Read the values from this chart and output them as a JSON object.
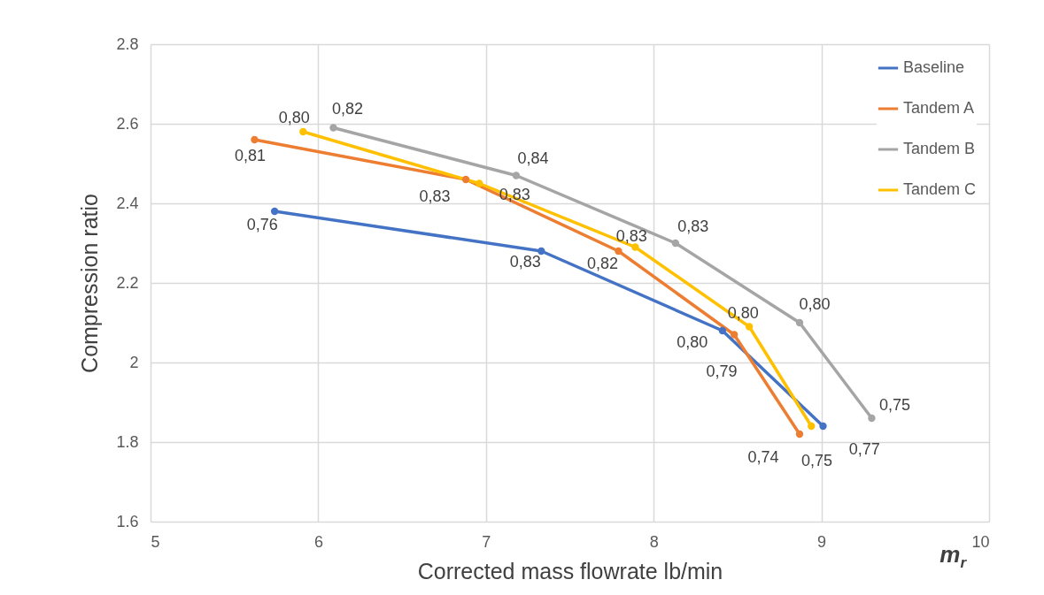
{
  "chart_data": {
    "type": "line",
    "xlabel": "Corrected mass flowrate lb/min",
    "ylabel": "Compression ratio",
    "xlim": [
      5,
      10
    ],
    "xticks": [
      5,
      6,
      7,
      8,
      9,
      10
    ],
    "ylim": [
      1.6,
      2.8
    ],
    "yticks": [
      1.6,
      1.8,
      2,
      2.2,
      2.4,
      2.6,
      2.8
    ],
    "grid": true,
    "legend": "top right",
    "marker": "circle",
    "line_style": "solid",
    "series": [
      {
        "name": "Baseline",
        "color": "#4472c4",
        "x": [
          5.74,
          7.33,
          8.41,
          9.01
        ],
        "values": [
          2.38,
          2.28,
          2.08,
          1.84
        ]
      },
      {
        "name": "Tandem A",
        "color": "#ed7d31",
        "x": [
          5.62,
          6.88,
          7.79,
          8.48,
          8.87
        ],
        "values": [
          2.56,
          2.46,
          2.28,
          2.07,
          1.82
        ]
      },
      {
        "name": "Tandem B",
        "color": "#a5a5a5",
        "x": [
          6.09,
          7.18,
          8.13,
          8.87,
          9.3
        ],
        "values": [
          2.59,
          2.47,
          2.3,
          2.1,
          1.86
        ]
      },
      {
        "name": "Tandem C",
        "color": "#ffc000",
        "x": [
          5.91,
          6.96,
          7.89,
          8.57,
          8.94
        ],
        "values": [
          2.58,
          2.45,
          2.29,
          2.09,
          1.84
        ]
      }
    ],
    "annotations": [
      {
        "text": "0,76",
        "x": 5.74,
        "y": 2.38
      },
      {
        "text": "0,83",
        "x": 7.33,
        "y": 2.28
      },
      {
        "text": "0,80",
        "x": 8.41,
        "y": 2.08
      },
      {
        "text": "0,75",
        "x": 9.01,
        "y": 1.84
      },
      {
        "text": "0,81",
        "x": 5.62,
        "y": 2.56
      },
      {
        "text": "0,83",
        "x": 6.88,
        "y": 2.46
      },
      {
        "text": "0,82",
        "x": 7.79,
        "y": 2.28
      },
      {
        "text": "0,79",
        "x": 8.48,
        "y": 2.07
      },
      {
        "text": "0,74",
        "x": 8.87,
        "y": 1.82
      },
      {
        "text": "0,82",
        "x": 6.09,
        "y": 2.59
      },
      {
        "text": "0,84",
        "x": 7.18,
        "y": 2.47
      },
      {
        "text": "0,83",
        "x": 8.13,
        "y": 2.3
      },
      {
        "text": "0,80",
        "x": 8.87,
        "y": 2.1
      },
      {
        "text": "0,75",
        "x": 9.3,
        "y": 1.86
      },
      {
        "text": "0,80",
        "x": 5.91,
        "y": 2.58
      },
      {
        "text": "0,83",
        "x": 6.96,
        "y": 2.45
      },
      {
        "text": "0,83",
        "x": 7.89,
        "y": 2.29
      },
      {
        "text": "0,80",
        "x": 8.57,
        "y": 2.09
      },
      {
        "text": "0,77",
        "x": 8.94,
        "y": 1.84
      },
      "m$_{r}$"
    ]
  }
}
